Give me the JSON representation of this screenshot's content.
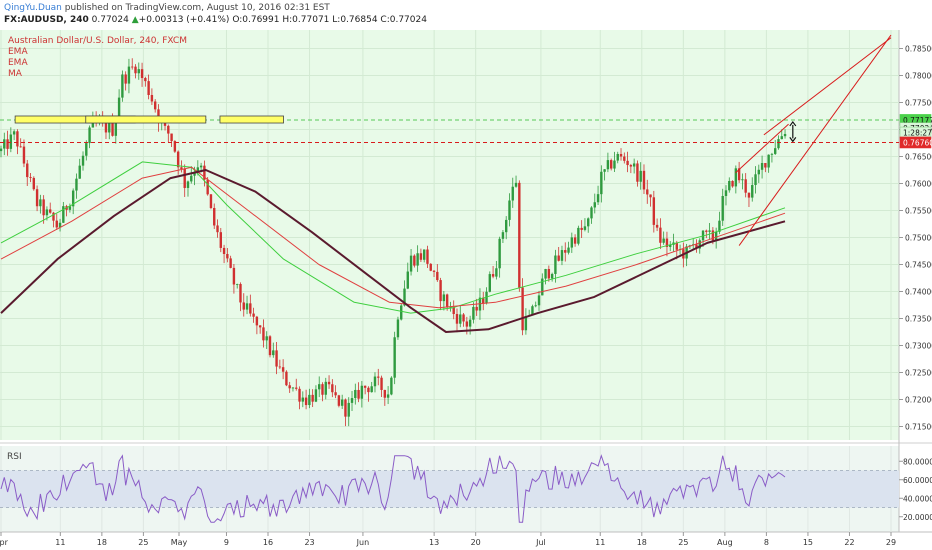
{
  "header": {
    "author": "QingYu.Duan",
    "published": " published on TradingView.com, August 10, 2016 02:31 EST",
    "symbol": "FX:AUDUSD, 240",
    "last": "0.77024",
    "change_arrow": "▲",
    "change": "+0.00313 (+0.41%)",
    "open": "O:0.76991",
    "high": "H:0.77071",
    "low": "L:0.76854",
    "close": "C:0.77024"
  },
  "legend": {
    "title": "Australian Dollar/U.S. Dollar, 240, FXCM",
    "items": [
      "EMA",
      "EMA",
      "MA"
    ]
  },
  "rsi_label": "RSI",
  "colors": {
    "pane_bg": "#e8fae8",
    "rsi_bg": "#eef6f2",
    "rsi_band": "#dbe3ef",
    "up_candle": "#2f9a3f",
    "down_candle": "#d03030",
    "ema_fast": "#3fcf3f",
    "ema_slow": "#e04040",
    "ma": "#5a1a2e",
    "rsi_line": "#8a5cc7",
    "resistance": "#d81c1c",
    "resistance_green": "#58c858",
    "price_tag_green": "#4cd24c",
    "price_tag_red": "#e02a2a"
  },
  "chart_data": [
    {
      "type": "candlestick",
      "title": "Australian Dollar/U.S. Dollar, 240, FXCM",
      "x_tick_labels": [
        "Apr",
        "11",
        "18",
        "25",
        "May",
        "9",
        "16",
        "23",
        "Jun",
        "13",
        "20",
        "Jul",
        "11",
        "18",
        "25",
        "Aug",
        "8",
        "15",
        "22",
        "29"
      ],
      "y_tick_labels": [
        "0.78500",
        "0.78000",
        "0.77500",
        "0.77000",
        "0.76500",
        "0.76000",
        "0.75500",
        "0.75000",
        "0.74500",
        "0.74000",
        "0.73500",
        "0.73000",
        "0.72500",
        "0.72000",
        "0.71500"
      ],
      "ylim": [
        0.7125,
        0.7875
      ],
      "price_tags": [
        {
          "value": 0.77177,
          "label": "0.77177",
          "style": "green"
        },
        {
          "value": 0.77024,
          "label": "0.77024",
          "style": "light"
        },
        {
          "value": 0.7698,
          "label": "1:28:27",
          "style": "light"
        },
        {
          "value": 0.7676,
          "label": "0.76760",
          "style": "red"
        }
      ],
      "horizontal_levels": [
        {
          "value": 0.77177,
          "style": "green-dashed"
        },
        {
          "value": 0.7676,
          "style": "red-dashed"
        }
      ],
      "anchors": [
        {
          "d": 0,
          "p": 0.766
        },
        {
          "d": 2,
          "p": 0.769
        },
        {
          "d": 5,
          "p": 0.7565
        },
        {
          "d": 8,
          "p": 0.752
        },
        {
          "d": 10,
          "p": 0.758
        },
        {
          "d": 13,
          "p": 0.771
        },
        {
          "d": 16,
          "p": 0.77
        },
        {
          "d": 17,
          "p": 0.779
        },
        {
          "d": 19,
          "p": 0.782
        },
        {
          "d": 21,
          "p": 0.777
        },
        {
          "d": 23,
          "p": 0.77
        },
        {
          "d": 24,
          "p": 0.769
        },
        {
          "d": 26,
          "p": 0.76
        },
        {
          "d": 28,
          "p": 0.764
        },
        {
          "d": 29,
          "p": 0.759
        },
        {
          "d": 30,
          "p": 0.753
        },
        {
          "d": 32,
          "p": 0.745
        },
        {
          "d": 34,
          "p": 0.738
        },
        {
          "d": 37,
          "p": 0.732
        },
        {
          "d": 40,
          "p": 0.724
        },
        {
          "d": 43,
          "p": 0.72
        },
        {
          "d": 46,
          "p": 0.722
        },
        {
          "d": 49,
          "p": 0.718
        },
        {
          "d": 51,
          "p": 0.722
        },
        {
          "d": 53,
          "p": 0.723
        },
        {
          "d": 55,
          "p": 0.721
        },
        {
          "d": 56,
          "p": 0.735
        },
        {
          "d": 58,
          "p": 0.746
        },
        {
          "d": 60,
          "p": 0.747
        },
        {
          "d": 62,
          "p": 0.74
        },
        {
          "d": 64,
          "p": 0.736
        },
        {
          "d": 66,
          "p": 0.734
        },
        {
          "d": 68,
          "p": 0.738
        },
        {
          "d": 70,
          "p": 0.745
        },
        {
          "d": 72,
          "p": 0.757
        },
        {
          "d": 73,
          "p": 0.761
        },
        {
          "d": 73.5,
          "p": 0.734
        },
        {
          "d": 75,
          "p": 0.735
        },
        {
          "d": 77,
          "p": 0.743
        },
        {
          "d": 79,
          "p": 0.746
        },
        {
          "d": 81,
          "p": 0.75
        },
        {
          "d": 83,
          "p": 0.752
        },
        {
          "d": 85,
          "p": 0.761
        },
        {
          "d": 87,
          "p": 0.765
        },
        {
          "d": 89,
          "p": 0.764
        },
        {
          "d": 91,
          "p": 0.76
        },
        {
          "d": 92,
          "p": 0.756
        },
        {
          "d": 93,
          "p": 0.75
        },
        {
          "d": 95,
          "p": 0.748
        },
        {
          "d": 97,
          "p": 0.747
        },
        {
          "d": 99,
          "p": 0.75
        },
        {
          "d": 101,
          "p": 0.75
        },
        {
          "d": 102,
          "p": 0.756
        },
        {
          "d": 104,
          "p": 0.762
        },
        {
          "d": 106,
          "p": 0.758
        },
        {
          "d": 108,
          "p": 0.764
        },
        {
          "d": 110,
          "p": 0.768
        },
        {
          "d": 111,
          "p": 0.77
        }
      ],
      "emas": {
        "fast": [
          [
            0,
            0.749
          ],
          [
            10,
            0.756
          ],
          [
            20,
            0.764
          ],
          [
            27,
            0.763
          ],
          [
            32,
            0.756
          ],
          [
            40,
            0.746
          ],
          [
            50,
            0.738
          ],
          [
            58,
            0.736
          ],
          [
            64,
            0.737
          ],
          [
            70,
            0.7395
          ],
          [
            80,
            0.743
          ],
          [
            90,
            0.747
          ],
          [
            100,
            0.7505
          ],
          [
            111,
            0.7555
          ]
        ],
        "slow": [
          [
            0,
            0.746
          ],
          [
            10,
            0.753
          ],
          [
            20,
            0.761
          ],
          [
            27,
            0.763
          ],
          [
            35,
            0.755
          ],
          [
            45,
            0.745
          ],
          [
            55,
            0.738
          ],
          [
            62,
            0.737
          ],
          [
            70,
            0.738
          ],
          [
            80,
            0.741
          ],
          [
            90,
            0.745
          ],
          [
            100,
            0.7495
          ],
          [
            111,
            0.7545
          ]
        ],
        "ma": [
          [
            0,
            0.736
          ],
          [
            8,
            0.746
          ],
          [
            16,
            0.754
          ],
          [
            24,
            0.761
          ],
          [
            29,
            0.7625
          ],
          [
            36,
            0.7585
          ],
          [
            44,
            0.751
          ],
          [
            52,
            0.743
          ],
          [
            58,
            0.737
          ],
          [
            63,
            0.7325
          ],
          [
            69,
            0.733
          ],
          [
            76,
            0.736
          ],
          [
            84,
            0.739
          ],
          [
            92,
            0.744
          ],
          [
            100,
            0.749
          ],
          [
            111,
            0.753
          ]
        ]
      }
    },
    {
      "type": "line",
      "title": "RSI",
      "y_tick_labels": [
        "80.0000",
        "60.0000",
        "40.0000",
        "20.0000"
      ],
      "ylim": [
        10,
        90
      ],
      "band": [
        30,
        70
      ]
    }
  ]
}
